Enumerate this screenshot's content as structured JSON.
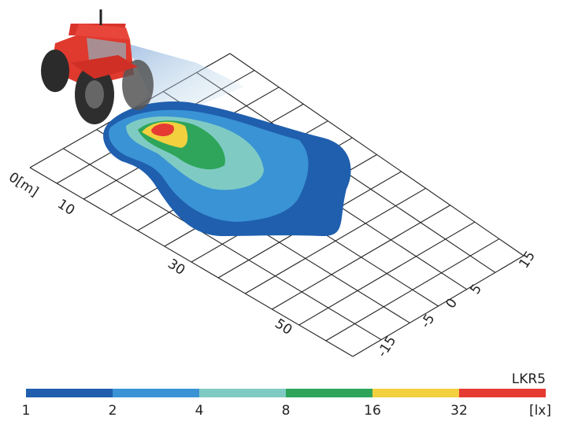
{
  "distance_axis": {
    "labels": [
      "0[m]",
      "10",
      "30",
      "50"
    ]
  },
  "width_axis": {
    "labels": [
      "15",
      "5",
      "0",
      "-5",
      "-15"
    ]
  },
  "legend": {
    "title": "LKR5",
    "unit": "[lx]",
    "levels": [
      "1",
      "2",
      "4",
      "8",
      "16",
      "32"
    ],
    "colors": [
      "#1f5fae",
      "#3a93d4",
      "#7fcbc4",
      "#2ea55a",
      "#f2d03e",
      "#e63b33"
    ]
  }
}
